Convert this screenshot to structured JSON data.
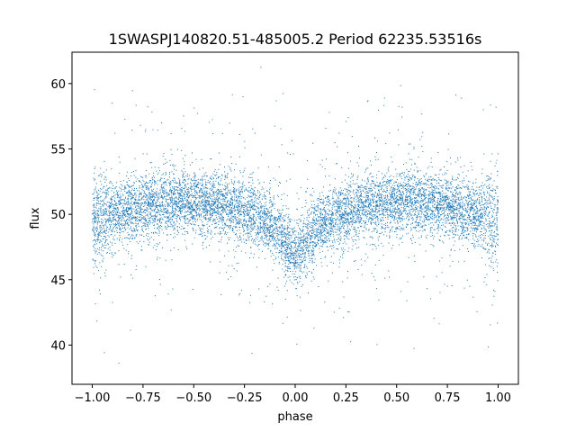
{
  "chart_data": {
    "type": "scatter",
    "title": "1SWASPJ140820.51-485005.2 Period 62235.53516s",
    "xlabel": "phase",
    "ylabel": "flux",
    "xlim": [
      -1.1,
      1.1
    ],
    "ylim": [
      37.0,
      62.4
    ],
    "x_ticks": [
      -1.0,
      -0.75,
      -0.5,
      -0.25,
      0.0,
      0.25,
      0.5,
      0.75,
      1.0
    ],
    "x_tick_labels": [
      "−1.00",
      "−0.75",
      "−0.50",
      "−0.25",
      "0.00",
      "0.25",
      "0.50",
      "0.75",
      "1.00"
    ],
    "y_ticks": [
      40,
      45,
      50,
      55,
      60
    ],
    "y_tick_labels": [
      "40",
      "45",
      "50",
      "55",
      "60"
    ],
    "grid": false,
    "legend": false,
    "marker_color": "#1f77b4",
    "series": [
      {
        "phase_range": [
          -1.0,
          1.0
        ],
        "light_curve_profile": {
          "x": [
            -1.0,
            -0.9,
            -0.75,
            -0.6,
            -0.5,
            -0.35,
            -0.2,
            -0.1,
            0.0,
            0.1,
            0.2,
            0.35,
            0.5,
            0.65,
            0.75,
            0.9,
            1.0
          ],
          "y": [
            49.2,
            50.0,
            50.7,
            51.0,
            50.9,
            50.6,
            49.9,
            48.9,
            46.8,
            48.9,
            49.9,
            50.6,
            50.9,
            51.0,
            50.7,
            50.0,
            49.2
          ]
        },
        "flux_min": 38.5,
        "flux_max": 61.5
      }
    ]
  }
}
